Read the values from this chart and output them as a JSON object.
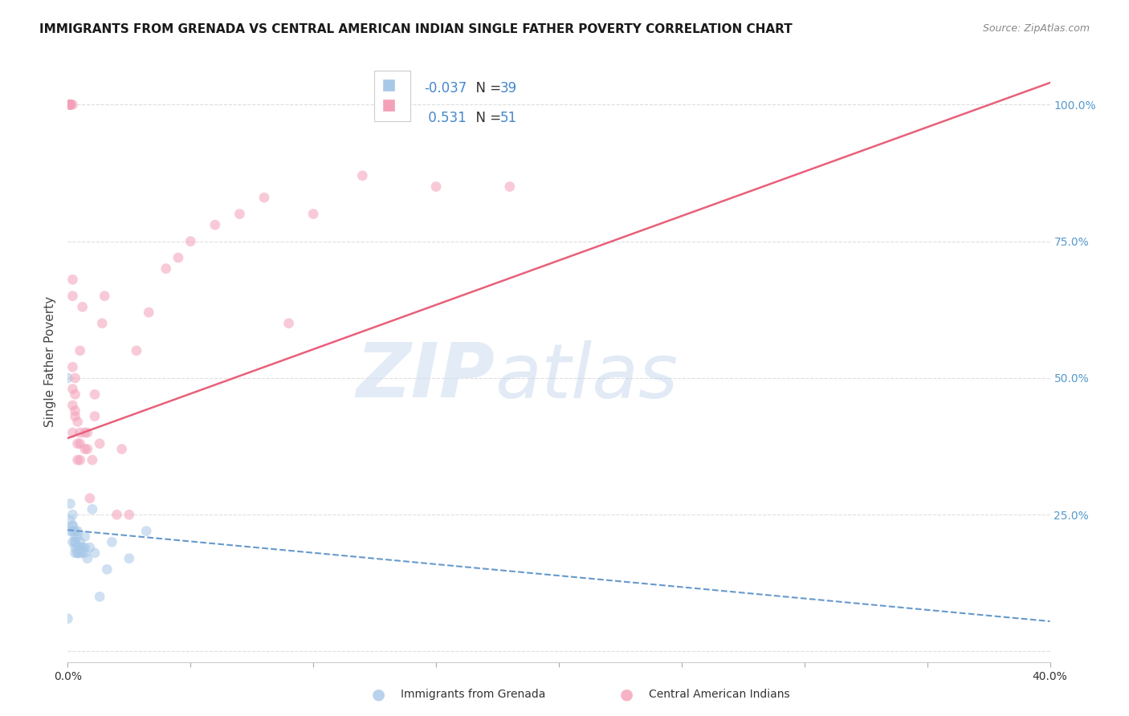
{
  "title": "IMMIGRANTS FROM GRENADA VS CENTRAL AMERICAN INDIAN SINGLE FATHER POVERTY CORRELATION CHART",
  "source": "Source: ZipAtlas.com",
  "ylabel": "Single Father Poverty",
  "legend1_label": "Immigrants from Grenada",
  "legend2_label": "Central American Indians",
  "R1": -0.037,
  "N1": 39,
  "R2": 0.531,
  "N2": 51,
  "color_blue": "#a8c8e8",
  "color_pink": "#f4a0b8",
  "line_blue": "#6699cc",
  "line_pink": "#e8607a",
  "background": "#ffffff",
  "blue_dots_x": [
    0.0,
    0.001,
    0.001,
    0.001,
    0.002,
    0.002,
    0.002,
    0.002,
    0.002,
    0.003,
    0.003,
    0.003,
    0.003,
    0.003,
    0.003,
    0.004,
    0.004,
    0.004,
    0.004,
    0.004,
    0.005,
    0.005,
    0.005,
    0.005,
    0.006,
    0.006,
    0.007,
    0.007,
    0.007,
    0.008,
    0.009,
    0.01,
    0.011,
    0.013,
    0.016,
    0.018,
    0.025,
    0.032,
    0.0
  ],
  "blue_dots_y": [
    0.5,
    0.22,
    0.24,
    0.27,
    0.2,
    0.22,
    0.23,
    0.23,
    0.25,
    0.18,
    0.19,
    0.2,
    0.2,
    0.21,
    0.22,
    0.18,
    0.18,
    0.19,
    0.21,
    0.22,
    0.18,
    0.19,
    0.19,
    0.2,
    0.18,
    0.19,
    0.18,
    0.19,
    0.21,
    0.17,
    0.19,
    0.26,
    0.18,
    0.1,
    0.15,
    0.2,
    0.17,
    0.22,
    0.06
  ],
  "pink_dots_x": [
    0.001,
    0.001,
    0.001,
    0.001,
    0.001,
    0.002,
    0.002,
    0.002,
    0.002,
    0.002,
    0.002,
    0.002,
    0.003,
    0.003,
    0.003,
    0.003,
    0.004,
    0.004,
    0.004,
    0.005,
    0.005,
    0.005,
    0.005,
    0.006,
    0.007,
    0.007,
    0.008,
    0.008,
    0.009,
    0.01,
    0.011,
    0.011,
    0.013,
    0.014,
    0.015,
    0.02,
    0.022,
    0.025,
    0.028,
    0.033,
    0.04,
    0.045,
    0.05,
    0.06,
    0.07,
    0.08,
    0.09,
    0.1,
    0.12,
    0.15,
    0.18
  ],
  "pink_dots_y": [
    1.0,
    1.0,
    1.0,
    1.0,
    1.0,
    1.0,
    0.65,
    0.68,
    0.4,
    0.45,
    0.48,
    0.52,
    0.43,
    0.44,
    0.47,
    0.5,
    0.35,
    0.38,
    0.42,
    0.35,
    0.38,
    0.4,
    0.55,
    0.63,
    0.37,
    0.4,
    0.37,
    0.4,
    0.28,
    0.35,
    0.43,
    0.47,
    0.38,
    0.6,
    0.65,
    0.25,
    0.37,
    0.25,
    0.55,
    0.62,
    0.7,
    0.72,
    0.75,
    0.78,
    0.8,
    0.83,
    0.6,
    0.8,
    0.87,
    0.85,
    0.85
  ],
  "xlim": [
    0.0,
    0.4
  ],
  "ylim": [
    -0.02,
    1.08
  ],
  "xticks": [
    0.0,
    0.05,
    0.1,
    0.15,
    0.2,
    0.25,
    0.3,
    0.35,
    0.4
  ],
  "xtick_labels_show": [
    "0.0%",
    "",
    "",
    "",
    "",
    "",
    "",
    "",
    "40.0%"
  ],
  "yticks": [
    0.0,
    0.25,
    0.5,
    0.75,
    1.0
  ],
  "ytick_labels_right": [
    "",
    "25.0%",
    "50.0%",
    "75.0%",
    "100.0%"
  ],
  "blue_trend_y0": 0.222,
  "blue_trend_y1": 0.055,
  "pink_trend_y0": 0.39,
  "pink_trend_y1": 1.04,
  "grid_color": "#dedede",
  "dot_size": 85,
  "dot_alpha": 0.55,
  "title_fontsize": 11,
  "axis_label_fontsize": 10,
  "right_tick_color": "#5599cc"
}
